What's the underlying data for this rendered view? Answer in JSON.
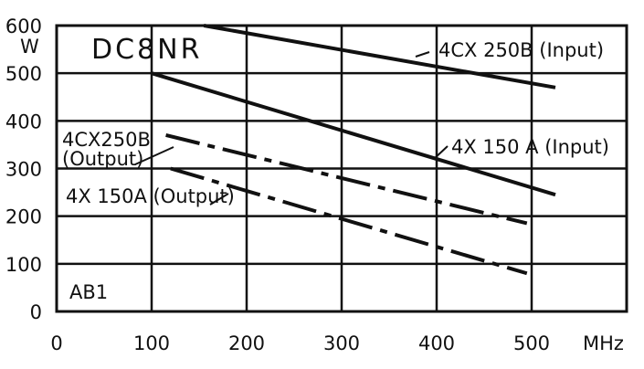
{
  "chart_data": {
    "type": "line",
    "title": "DC8NR",
    "annotation": "AB1",
    "xlabel": "MHz",
    "ylabel": "W",
    "xlim": [
      0,
      600
    ],
    "ylim": [
      0,
      600
    ],
    "x_ticks": [
      "0",
      "100",
      "200",
      "300",
      "400",
      "500"
    ],
    "y_ticks": [
      "600",
      "500",
      "400",
      "300",
      "200",
      "100",
      "0"
    ],
    "grid": true,
    "series": [
      {
        "name": "4CX 250B (Input)",
        "style": "solid",
        "x": [
          155,
          525
        ],
        "y": [
          600,
          470
        ]
      },
      {
        "name": "4X 150 A (Input)",
        "style": "solid",
        "x": [
          100,
          525
        ],
        "y": [
          500,
          245
        ]
      },
      {
        "name": "4CX250B (Output)",
        "style": "dashdot",
        "x": [
          115,
          495
        ],
        "y": [
          370,
          185
        ]
      },
      {
        "name": "4X 150A (Output)",
        "style": "dashdot",
        "x": [
          120,
          495
        ],
        "y": [
          300,
          80
        ]
      }
    ],
    "series_labels": [
      {
        "lines": [
          "4CX 250B (Input)"
        ]
      },
      {
        "lines": [
          "4X 150 A (Input)"
        ]
      },
      {
        "lines": [
          "4CX250B",
          "(Output)"
        ]
      },
      {
        "lines": [
          "4X 150A (Output)"
        ]
      }
    ]
  }
}
